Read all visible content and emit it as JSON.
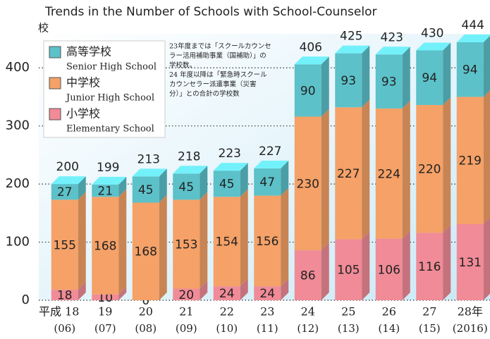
{
  "chart_data": {
    "type": "stacked-bar-3d",
    "title": "Trends in the Number of Schools with School-Counselor",
    "y_unit": "校",
    "categories": [
      "平成 18",
      "19",
      "20",
      "21",
      "22",
      "23",
      "24",
      "25",
      "26",
      "27",
      "28年"
    ],
    "x_sublabels": [
      "(06)",
      "(07)",
      "(08)",
      "(09)",
      "(10)",
      "(11)",
      "(12)",
      "(13)",
      "(14)",
      "(15)",
      "(2016)"
    ],
    "series": [
      {
        "name": "高等学校",
        "name_en": "Senior High School",
        "color": "#5cc1c9",
        "values": [
          27,
          21,
          45,
          45,
          45,
          47,
          90,
          93,
          93,
          94,
          94
        ]
      },
      {
        "name": "中学校",
        "name_en": "Junior High School",
        "color": "#f5a167",
        "values": [
          155,
          168,
          168,
          153,
          154,
          156,
          230,
          227,
          224,
          220,
          219
        ]
      },
      {
        "name": "小学校",
        "name_en": "Elementary School",
        "color": "#f08b97",
        "values": [
          18,
          10,
          0,
          20,
          24,
          24,
          86,
          105,
          106,
          116,
          131
        ]
      }
    ],
    "totals": [
      200,
      199,
      213,
      218,
      223,
      227,
      406,
      425,
      423,
      430,
      444
    ],
    "annotation": [
      "23年度までは「スクールカウンセ",
      "ラー活用補助事業（国補助）」の",
      "学校数。",
      "24 年度以降は「緊急時スクール",
      "カウンセラー派遣事業（災害",
      "分）」との合計の学校数"
    ],
    "ylim": [
      0,
      450
    ],
    "yticks": [
      0,
      100,
      200,
      300,
      400
    ],
    "grid": true,
    "legend": "upper left"
  }
}
